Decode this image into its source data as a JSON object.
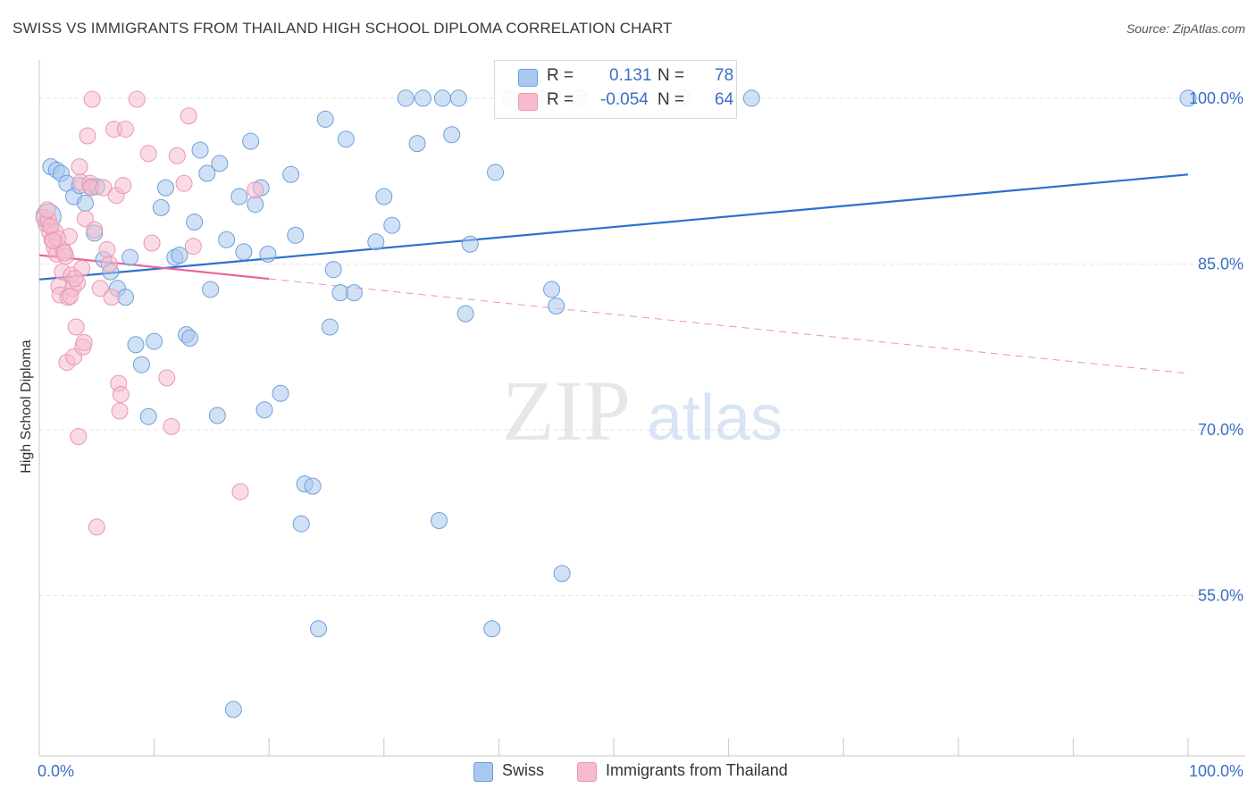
{
  "header": {
    "title": "SWISS VS IMMIGRANTS FROM THAILAND HIGH SCHOOL DIPLOMA CORRELATION CHART",
    "source": "Source: ZipAtlas.com"
  },
  "watermark": {
    "zip": "ZIP",
    "atlas": "atlas"
  },
  "legend": {
    "swiss": {
      "r_label": "R =",
      "r_value": "0.131",
      "n_label": "N =",
      "n_value": "78"
    },
    "thai": {
      "r_label": "R =",
      "r_value": "-0.054",
      "n_label": "N =",
      "n_value": "64"
    }
  },
  "bottom_legend": {
    "swiss": "Swiss",
    "thai": "Immigrants from Thailand"
  },
  "colors": {
    "swiss_fill": "#a9c8ef",
    "swiss_stroke": "#6f9fd8",
    "swiss_line": "#2f6fcf",
    "thai_fill": "#f6bccd",
    "thai_stroke": "#e898b2",
    "thai_line": "#e8649a",
    "tick_label": "#3a6fc4",
    "grid": "#e3e3e3"
  },
  "chart_data": {
    "type": "scatter",
    "title": "SWISS VS IMMIGRANTS FROM THAILAND HIGH SCHOOL DIPLOMA CORRELATION CHART",
    "xlabel": "",
    "ylabel": "High School Diploma",
    "xlim": [
      0,
      100
    ],
    "ylim": [
      40.5,
      102.5
    ],
    "x_tick_labels": [
      "0.0%",
      "100.0%"
    ],
    "y_ticks": [
      55,
      70,
      85,
      100
    ],
    "y_tick_labels": [
      "55.0%",
      "70.0%",
      "85.0%",
      "100.0%"
    ],
    "grid": true,
    "legend_position": "top-center",
    "series": [
      {
        "name": "Swiss",
        "r": 0.131,
        "n": 78,
        "trend": {
          "x0": 0,
          "y0": 83.6,
          "x1": 100,
          "y1": 93.1
        },
        "points": [
          [
            0.8,
            89.3
          ],
          [
            1.0,
            93.8
          ],
          [
            1.5,
            93.5
          ],
          [
            1.9,
            93.2
          ],
          [
            2.4,
            92.3
          ],
          [
            3.0,
            91.1
          ],
          [
            3.5,
            92.1
          ],
          [
            4.0,
            90.5
          ],
          [
            4.5,
            92.0
          ],
          [
            5.0,
            92.0
          ],
          [
            4.8,
            87.8
          ],
          [
            5.6,
            85.4
          ],
          [
            6.2,
            84.3
          ],
          [
            6.8,
            82.8
          ],
          [
            7.5,
            82.0
          ],
          [
            7.9,
            85.6
          ],
          [
            8.4,
            77.7
          ],
          [
            8.9,
            75.9
          ],
          [
            9.5,
            71.2
          ],
          [
            10.0,
            78.0
          ],
          [
            10.6,
            90.1
          ],
          [
            11.0,
            91.9
          ],
          [
            11.8,
            85.6
          ],
          [
            12.2,
            85.8
          ],
          [
            12.8,
            78.6
          ],
          [
            13.1,
            78.3
          ],
          [
            13.5,
            88.8
          ],
          [
            14.0,
            95.3
          ],
          [
            14.6,
            93.2
          ],
          [
            14.9,
            82.7
          ],
          [
            15.5,
            71.3
          ],
          [
            15.7,
            94.1
          ],
          [
            16.3,
            87.2
          ],
          [
            16.9,
            44.7
          ],
          [
            17.4,
            91.1
          ],
          [
            17.8,
            86.1
          ],
          [
            18.4,
            96.1
          ],
          [
            18.8,
            90.4
          ],
          [
            19.3,
            91.9
          ],
          [
            19.6,
            71.8
          ],
          [
            19.9,
            85.9
          ],
          [
            21.0,
            73.3
          ],
          [
            21.9,
            93.1
          ],
          [
            22.3,
            87.6
          ],
          [
            22.8,
            61.5
          ],
          [
            23.1,
            65.1
          ],
          [
            23.8,
            64.9
          ],
          [
            24.3,
            52.0
          ],
          [
            24.9,
            98.1
          ],
          [
            25.3,
            79.3
          ],
          [
            25.6,
            84.5
          ],
          [
            26.2,
            82.4
          ],
          [
            26.7,
            96.3
          ],
          [
            27.4,
            82.4
          ],
          [
            29.3,
            87.0
          ],
          [
            30.0,
            91.1
          ],
          [
            30.7,
            88.5
          ],
          [
            31.9,
            100.0
          ],
          [
            32.9,
            95.9
          ],
          [
            33.4,
            100.0
          ],
          [
            34.8,
            61.8
          ],
          [
            35.1,
            100.0
          ],
          [
            35.9,
            96.7
          ],
          [
            36.5,
            100.0
          ],
          [
            37.1,
            80.5
          ],
          [
            37.5,
            86.8
          ],
          [
            39.4,
            52.0
          ],
          [
            39.7,
            93.3
          ],
          [
            41.0,
            100.0
          ],
          [
            43.6,
            100.0
          ],
          [
            44.6,
            82.7
          ],
          [
            45.0,
            81.2
          ],
          [
            45.5,
            57.0
          ],
          [
            47.0,
            100.0
          ],
          [
            50.0,
            100.0
          ],
          [
            56.0,
            100.0
          ],
          [
            62.0,
            100.0
          ],
          [
            100.0,
            100.0
          ]
        ]
      },
      {
        "name": "Immigrants from Thailand",
        "r": -0.054,
        "n": 64,
        "trend": {
          "x0": 0,
          "y0": 85.8,
          "x1": 100,
          "y1": 75.1,
          "solid_until_x": 20
        },
        "points": [
          [
            0.4,
            89.2
          ],
          [
            0.6,
            88.6
          ],
          [
            0.8,
            89.0
          ],
          [
            0.9,
            87.9
          ],
          [
            1.1,
            87.2
          ],
          [
            1.3,
            86.5
          ],
          [
            1.4,
            87.9
          ],
          [
            1.5,
            85.9
          ],
          [
            1.7,
            83.0
          ],
          [
            1.8,
            82.2
          ],
          [
            2.0,
            84.3
          ],
          [
            2.1,
            86.2
          ],
          [
            2.3,
            85.7
          ],
          [
            2.4,
            76.1
          ],
          [
            2.5,
            82.0
          ],
          [
            2.6,
            87.5
          ],
          [
            2.8,
            84.0
          ],
          [
            2.9,
            82.8
          ],
          [
            3.0,
            76.6
          ],
          [
            3.2,
            79.3
          ],
          [
            3.3,
            83.3
          ],
          [
            3.4,
            69.4
          ],
          [
            3.5,
            93.8
          ],
          [
            3.6,
            92.4
          ],
          [
            3.7,
            84.6
          ],
          [
            3.8,
            77.5
          ],
          [
            3.9,
            77.9
          ],
          [
            4.0,
            89.1
          ],
          [
            4.2,
            96.6
          ],
          [
            4.4,
            92.3
          ],
          [
            4.5,
            91.9
          ],
          [
            4.6,
            99.9
          ],
          [
            4.8,
            88.1
          ],
          [
            5.0,
            61.2
          ],
          [
            5.3,
            82.8
          ],
          [
            5.6,
            91.9
          ],
          [
            5.9,
            86.3
          ],
          [
            6.1,
            85.0
          ],
          [
            6.3,
            82.0
          ],
          [
            6.5,
            97.2
          ],
          [
            6.7,
            91.2
          ],
          [
            6.9,
            74.2
          ],
          [
            7.0,
            71.7
          ],
          [
            7.1,
            73.2
          ],
          [
            7.3,
            92.1
          ],
          [
            7.5,
            97.2
          ],
          [
            8.5,
            99.9
          ],
          [
            9.5,
            95.0
          ],
          [
            9.8,
            86.9
          ],
          [
            11.1,
            74.7
          ],
          [
            11.5,
            70.3
          ],
          [
            12.0,
            94.8
          ],
          [
            12.6,
            92.3
          ],
          [
            13.0,
            98.4
          ],
          [
            13.4,
            86.6
          ],
          [
            17.5,
            64.4
          ],
          [
            18.8,
            91.7
          ],
          [
            1.0,
            88.4
          ],
          [
            2.2,
            86.0
          ],
          [
            1.6,
            87.3
          ],
          [
            3.1,
            83.7
          ],
          [
            0.7,
            89.9
          ],
          [
            2.7,
            82.1
          ],
          [
            1.2,
            87.1
          ]
        ]
      }
    ]
  }
}
